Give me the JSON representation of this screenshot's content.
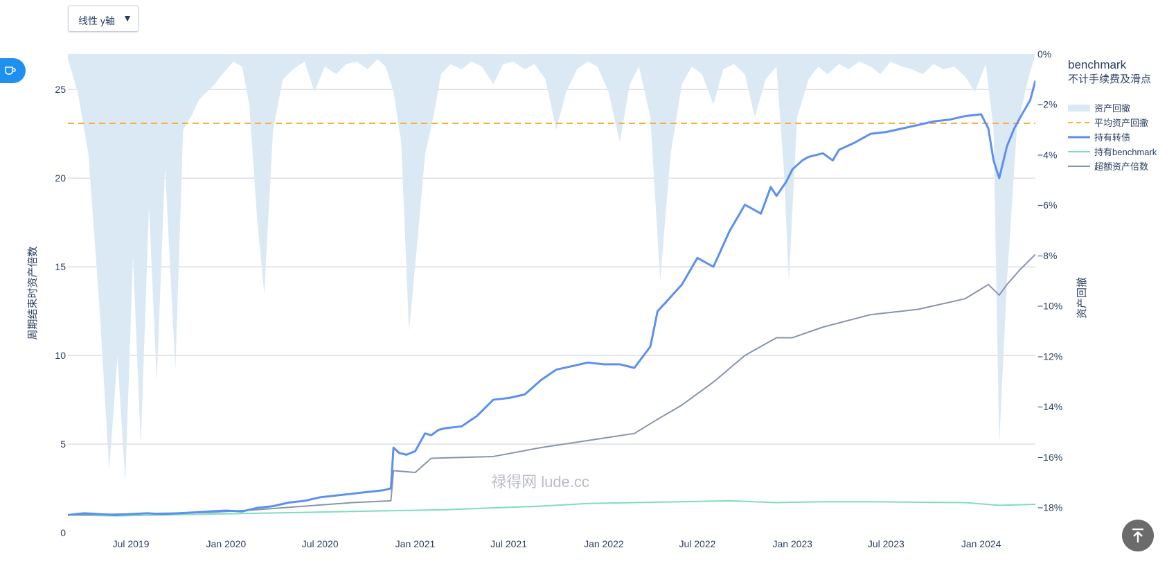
{
  "controls": {
    "scale_select_label": "线性 y轴",
    "scale_select_arrow": "▼"
  },
  "watermark": "禄得网 lude.cc",
  "colors": {
    "drawdown_fill": "#dbe9f4",
    "avg_drawdown_line": "#f7b13b",
    "hold_bond": "#5b8ff0",
    "hold_benchmark": "#7fdcbc",
    "excess": "#8794ac",
    "side_tab": "#1e90f0",
    "top_button": "#6b6b6b"
  },
  "chart_data": {
    "type": "line",
    "title": "benchmark",
    "subtitle": "不计手续费及滑点",
    "ylabel": "周期结束时资产倍数",
    "y2label": "资产回撤",
    "ylim": [
      0,
      27
    ],
    "y2lim": [
      -19,
      0
    ],
    "yticks": [
      0,
      5,
      10,
      15,
      20,
      25
    ],
    "yticklabels": [
      "0",
      "5",
      "10",
      "15",
      "20",
      "25"
    ],
    "y2ticks": [
      0,
      -2,
      -4,
      -6,
      -8,
      -10,
      -12,
      -14,
      -16,
      -18
    ],
    "y2ticklabels": [
      "0%",
      "−2%",
      "−4%",
      "−6%",
      "−8%",
      "−10%",
      "−12%",
      "−14%",
      "−16%",
      "−18%"
    ],
    "xrange": [
      "2019-03-01",
      "2024-04-15"
    ],
    "xticks": [
      "2019-07-01",
      "2020-01-01",
      "2020-07-01",
      "2021-01-01",
      "2021-07-01",
      "2022-01-01",
      "2022-07-01",
      "2023-01-01",
      "2023-07-01",
      "2024-01-01"
    ],
    "xticklabels": [
      "Jul 2019",
      "Jan 2020",
      "Jul 2020",
      "Jan 2021",
      "Jul 2021",
      "Jan 2022",
      "Jul 2022",
      "Jan 2023",
      "Jul 2023",
      "Jan 2024"
    ],
    "grid": true,
    "legend_position": "right",
    "series": [
      {
        "name": "资产回撤",
        "type": "area",
        "axis": "y2",
        "x": [
          "2019-03-01",
          "2019-03-20",
          "2019-04-10",
          "2019-05-01",
          "2019-05-20",
          "2019-06-05",
          "2019-06-20",
          "2019-07-05",
          "2019-07-20",
          "2019-08-05",
          "2019-08-20",
          "2019-09-05",
          "2019-09-25",
          "2019-10-10",
          "2019-10-25",
          "2019-11-10",
          "2019-11-25",
          "2019-12-10",
          "2019-12-25",
          "2020-01-15",
          "2020-02-01",
          "2020-02-15",
          "2020-03-01",
          "2020-03-15",
          "2020-04-01",
          "2020-04-20",
          "2020-05-10",
          "2020-06-01",
          "2020-06-20",
          "2020-07-10",
          "2020-08-01",
          "2020-08-20",
          "2020-09-10",
          "2020-10-01",
          "2020-10-20",
          "2020-11-05",
          "2020-11-20",
          "2020-12-05",
          "2020-12-20",
          "2021-01-05",
          "2021-01-20",
          "2021-02-05",
          "2021-02-20",
          "2021-03-10",
          "2021-04-01",
          "2021-04-20",
          "2021-05-10",
          "2021-06-01",
          "2021-06-20",
          "2021-07-10",
          "2021-08-01",
          "2021-08-20",
          "2021-09-10",
          "2021-10-01",
          "2021-10-20",
          "2021-11-10",
          "2021-12-01",
          "2021-12-20",
          "2022-01-10",
          "2022-02-01",
          "2022-02-20",
          "2022-03-10",
          "2022-04-01",
          "2022-04-20",
          "2022-05-10",
          "2022-06-01",
          "2022-06-20",
          "2022-07-10",
          "2022-08-01",
          "2022-08-20",
          "2022-09-10",
          "2022-10-01",
          "2022-10-20",
          "2022-11-10",
          "2022-12-01",
          "2022-12-15",
          "2022-12-25",
          "2023-01-10",
          "2023-02-01",
          "2023-02-20",
          "2023-03-10",
          "2023-04-01",
          "2023-04-20",
          "2023-05-10",
          "2023-06-01",
          "2023-06-20",
          "2023-07-10",
          "2023-08-01",
          "2023-08-20",
          "2023-09-10",
          "2023-10-01",
          "2023-10-20",
          "2023-11-10",
          "2023-12-01",
          "2023-12-20",
          "2024-01-10",
          "2024-01-25",
          "2024-02-05",
          "2024-02-20",
          "2024-03-10",
          "2024-04-01",
          "2024-04-15"
        ],
        "y": [
          -0.2,
          -1.5,
          -4.0,
          -10.0,
          -16.5,
          -12.0,
          -17.0,
          -8.0,
          -15.5,
          -6.0,
          -13.0,
          -4.5,
          -12.5,
          -3.0,
          -2.5,
          -1.8,
          -1.5,
          -1.2,
          -0.8,
          -0.3,
          -0.5,
          -2.0,
          -6.5,
          -9.5,
          -3.0,
          -1.0,
          -0.6,
          -0.3,
          -1.5,
          -0.5,
          -0.8,
          -0.4,
          -0.3,
          -0.6,
          -0.2,
          -0.5,
          -1.5,
          -3.5,
          -11.0,
          -7.5,
          -4.0,
          -2.5,
          -0.8,
          -0.4,
          -0.6,
          -0.3,
          -0.5,
          -1.2,
          -0.4,
          -0.3,
          -0.6,
          -0.4,
          -1.0,
          -3.0,
          -1.5,
          -0.6,
          -0.3,
          -0.5,
          -1.5,
          -3.5,
          -1.2,
          -0.5,
          -2.5,
          -9.0,
          -4.0,
          -1.2,
          -0.5,
          -0.8,
          -2.0,
          -0.6,
          -0.4,
          -0.8,
          -2.5,
          -1.0,
          -0.5,
          -4.5,
          -9.0,
          -2.5,
          -1.0,
          -0.5,
          -0.8,
          -0.4,
          -0.6,
          -0.3,
          -0.5,
          -0.8,
          -0.3,
          -0.5,
          -0.6,
          -0.8,
          -0.4,
          -0.6,
          -0.5,
          -0.9,
          -1.5,
          -0.4,
          -3.0,
          -15.5,
          -9.0,
          -3.0,
          -1.0,
          0.0
        ]
      },
      {
        "name": "平均资产回撤",
        "type": "hline",
        "axis": "y2",
        "value": -2.75
      },
      {
        "name": "持有转债",
        "type": "line",
        "axis": "y",
        "x": [
          "2019-03-01",
          "2019-04-01",
          "2019-05-01",
          "2019-06-01",
          "2019-07-01",
          "2019-08-01",
          "2019-09-01",
          "2019-10-01",
          "2019-11-01",
          "2019-12-01",
          "2020-01-01",
          "2020-02-01",
          "2020-03-01",
          "2020-04-01",
          "2020-05-01",
          "2020-06-01",
          "2020-07-01",
          "2020-08-01",
          "2020-09-01",
          "2020-10-01",
          "2020-11-01",
          "2020-11-15",
          "2020-11-20",
          "2020-12-01",
          "2020-12-15",
          "2021-01-01",
          "2021-01-20",
          "2021-02-01",
          "2021-02-15",
          "2021-03-01",
          "2021-04-01",
          "2021-05-01",
          "2021-06-01",
          "2021-07-01",
          "2021-08-01",
          "2021-09-01",
          "2021-10-01",
          "2021-11-01",
          "2021-12-01",
          "2022-01-01",
          "2022-02-01",
          "2022-03-01",
          "2022-04-01",
          "2022-04-15",
          "2022-05-01",
          "2022-06-01",
          "2022-07-01",
          "2022-08-01",
          "2022-09-01",
          "2022-10-01",
          "2022-11-01",
          "2022-11-20",
          "2022-12-01",
          "2022-12-20",
          "2023-01-01",
          "2023-01-20",
          "2023-02-01",
          "2023-03-01",
          "2023-03-20",
          "2023-04-01",
          "2023-05-01",
          "2023-06-01",
          "2023-07-01",
          "2023-08-01",
          "2023-09-01",
          "2023-10-01",
          "2023-11-01",
          "2023-12-01",
          "2024-01-01",
          "2024-01-15",
          "2024-01-25",
          "2024-02-05",
          "2024-02-20",
          "2024-03-05",
          "2024-03-20",
          "2024-04-05",
          "2024-04-15"
        ],
        "y": [
          1.0,
          1.1,
          1.05,
          1.0,
          1.05,
          1.1,
          1.05,
          1.1,
          1.15,
          1.2,
          1.25,
          1.2,
          1.4,
          1.5,
          1.7,
          1.8,
          2.0,
          2.1,
          2.2,
          2.3,
          2.4,
          2.5,
          4.8,
          4.5,
          4.4,
          4.6,
          5.6,
          5.5,
          5.8,
          5.9,
          6.0,
          6.6,
          7.5,
          7.6,
          7.8,
          8.6,
          9.2,
          9.4,
          9.6,
          9.5,
          9.5,
          9.3,
          10.5,
          12.5,
          13.0,
          14.0,
          15.5,
          15.0,
          17.0,
          18.5,
          18.0,
          19.5,
          19.0,
          19.8,
          20.5,
          21.0,
          21.2,
          21.4,
          21.0,
          21.6,
          22.0,
          22.5,
          22.6,
          22.8,
          23.0,
          23.2,
          23.3,
          23.5,
          23.6,
          22.8,
          21.0,
          20.0,
          21.8,
          22.8,
          23.6,
          24.4,
          25.5
        ]
      },
      {
        "name": "持有benchmark",
        "type": "line",
        "axis": "y",
        "x": [
          "2019-03-01",
          "2019-06-01",
          "2019-09-01",
          "2019-12-01",
          "2020-03-01",
          "2020-06-01",
          "2020-09-01",
          "2020-12-01",
          "2021-03-01",
          "2021-06-01",
          "2021-09-01",
          "2021-12-01",
          "2022-03-01",
          "2022-06-01",
          "2022-09-01",
          "2022-12-01",
          "2023-03-01",
          "2023-06-01",
          "2023-09-01",
          "2023-12-01",
          "2024-02-05",
          "2024-04-15"
        ],
        "y": [
          1.0,
          0.95,
          1.0,
          1.05,
          1.1,
          1.15,
          1.2,
          1.25,
          1.3,
          1.4,
          1.5,
          1.65,
          1.7,
          1.75,
          1.8,
          1.7,
          1.75,
          1.75,
          1.72,
          1.7,
          1.55,
          1.6
        ]
      },
      {
        "name": "超额资产倍数",
        "type": "line",
        "axis": "y",
        "x": [
          "2019-03-01",
          "2019-06-01",
          "2019-09-01",
          "2019-12-01",
          "2020-03-01",
          "2020-06-01",
          "2020-09-01",
          "2020-11-15",
          "2020-11-20",
          "2021-01-01",
          "2021-02-01",
          "2021-06-01",
          "2021-09-01",
          "2021-12-01",
          "2022-03-01",
          "2022-04-15",
          "2022-06-01",
          "2022-08-01",
          "2022-10-01",
          "2022-12-01",
          "2023-01-01",
          "2023-03-01",
          "2023-06-01",
          "2023-09-01",
          "2023-12-01",
          "2024-01-15",
          "2024-02-05",
          "2024-02-20",
          "2024-03-15",
          "2024-04-15"
        ],
        "y": [
          1.0,
          1.05,
          1.1,
          1.15,
          1.3,
          1.5,
          1.7,
          1.8,
          3.5,
          3.4,
          4.2,
          4.3,
          4.8,
          5.2,
          5.6,
          6.4,
          7.2,
          8.5,
          10.0,
          11.0,
          11.0,
          11.6,
          12.3,
          12.6,
          13.2,
          14.0,
          13.4,
          14.0,
          14.8,
          15.7
        ]
      }
    ]
  }
}
